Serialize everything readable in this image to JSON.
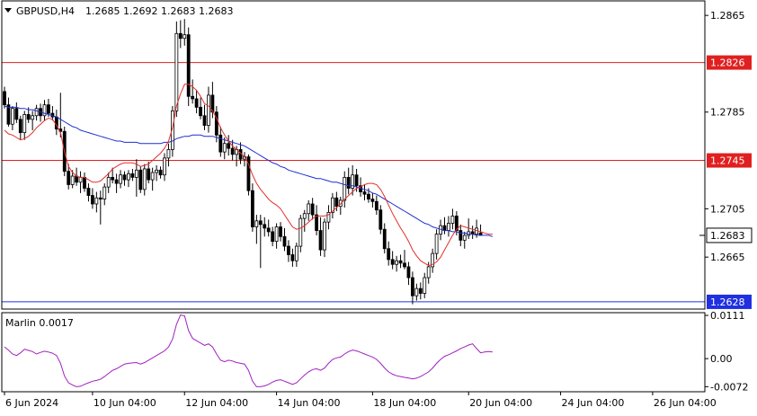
{
  "symbol_header": {
    "symbol": "GBPUSD,H4",
    "ohlc": "1.2685 1.2692 1.2683 1.2683"
  },
  "colors": {
    "background": "#ffffff",
    "candle_bull": "#ffffff",
    "candle_bear": "#000000",
    "candle_outline": "#000000",
    "fast_ma": "#e0302a",
    "slow_ma": "#1f2fd0",
    "level_resistance": "#e02020",
    "level_support": "#2030e0",
    "oscillator": "#a020c0",
    "label_bg": "#ffffff"
  },
  "chart_data": [
    {
      "type": "candlestick",
      "title": "GBPUSD,H4",
      "ylim": [
        1.2622,
        1.2877
      ],
      "y_ticks": [
        "1.2865",
        "1.2785",
        "1.2705",
        "1.2665"
      ],
      "grid": false,
      "x_tick_labels": [
        "6 Jun 2024",
        "10 Jun 04:00",
        "12 Jun 04:00",
        "14 Jun 04:00",
        "18 Jun 04:00",
        "20 Jun 04:00",
        "24 Jun 04:00",
        "26 Jun 04:00"
      ],
      "x_tick_index": [
        0,
        22,
        45,
        68,
        92,
        116,
        139,
        162
      ],
      "last_price_label": "1.2683",
      "last_price": 1.2683,
      "levels": [
        {
          "value": 1.2826,
          "label": "1.2826",
          "color": "red"
        },
        {
          "value": 1.2745,
          "label": "1.2745",
          "color": "red"
        },
        {
          "value": 1.2628,
          "label": "1.2628",
          "color": "blue"
        }
      ],
      "ohlc": [
        [
          1.2802,
          1.2806,
          1.2788,
          1.2791
        ],
        [
          1.2791,
          1.2797,
          1.2773,
          1.2775
        ],
        [
          1.2775,
          1.279,
          1.277,
          1.2788
        ],
        [
          1.2788,
          1.2793,
          1.2776,
          1.2779
        ],
        [
          1.2779,
          1.2782,
          1.2762,
          1.2768
        ],
        [
          1.2768,
          1.2786,
          1.2762,
          1.2783
        ],
        [
          1.2783,
          1.2789,
          1.2776,
          1.2779
        ],
        [
          1.2779,
          1.2786,
          1.277,
          1.2782
        ],
        [
          1.2782,
          1.2791,
          1.2778,
          1.2788
        ],
        [
          1.2788,
          1.2792,
          1.2777,
          1.2782
        ],
        [
          1.2782,
          1.2795,
          1.2778,
          1.2791
        ],
        [
          1.2791,
          1.2796,
          1.2781,
          1.2784
        ],
        [
          1.2784,
          1.279,
          1.2778,
          1.2781
        ],
        [
          1.2781,
          1.2787,
          1.2766,
          1.2771
        ],
        [
          1.2771,
          1.2801,
          1.2764,
          1.2769
        ],
        [
          1.2769,
          1.2773,
          1.2732,
          1.2736
        ],
        [
          1.2736,
          1.2742,
          1.2721,
          1.2725
        ],
        [
          1.2725,
          1.2737,
          1.2722,
          1.2732
        ],
        [
          1.2732,
          1.2739,
          1.2724,
          1.2727
        ],
        [
          1.2727,
          1.2736,
          1.2718,
          1.2731
        ],
        [
          1.2731,
          1.2735,
          1.2719,
          1.2722
        ],
        [
          1.2722,
          1.2726,
          1.2711,
          1.2716
        ],
        [
          1.2716,
          1.2722,
          1.2705,
          1.2709
        ],
        [
          1.2709,
          1.2719,
          1.2702,
          1.2714
        ],
        [
          1.2714,
          1.272,
          1.2692,
          1.2713
        ],
        [
          1.2713,
          1.2726,
          1.2708,
          1.2723
        ],
        [
          1.2723,
          1.2735,
          1.2718,
          1.2731
        ],
        [
          1.2731,
          1.2739,
          1.2726,
          1.2729
        ],
        [
          1.2729,
          1.2734,
          1.2718,
          1.2726
        ],
        [
          1.2726,
          1.2737,
          1.2722,
          1.2733
        ],
        [
          1.2733,
          1.2736,
          1.2724,
          1.2729
        ],
        [
          1.2729,
          1.2737,
          1.2723,
          1.2734
        ],
        [
          1.2734,
          1.2738,
          1.2728,
          1.2731
        ],
        [
          1.2731,
          1.2746,
          1.2715,
          1.2737
        ],
        [
          1.2737,
          1.274,
          1.2718,
          1.2721
        ],
        [
          1.2721,
          1.2742,
          1.2716,
          1.2738
        ],
        [
          1.2738,
          1.2744,
          1.2726,
          1.2729
        ],
        [
          1.2729,
          1.2739,
          1.272,
          1.2735
        ],
        [
          1.2735,
          1.2741,
          1.2728,
          1.2737
        ],
        [
          1.2737,
          1.274,
          1.273,
          1.2733
        ],
        [
          1.2733,
          1.2751,
          1.2728,
          1.2747
        ],
        [
          1.2747,
          1.2759,
          1.274,
          1.2754
        ],
        [
          1.2754,
          1.279,
          1.2748,
          1.2786
        ],
        [
          1.2786,
          1.286,
          1.2781,
          1.285
        ],
        [
          1.285,
          1.2861,
          1.2838,
          1.2846
        ],
        [
          1.2846,
          1.2862,
          1.284,
          1.2849
        ],
        [
          1.2849,
          1.2855,
          1.279,
          1.2798
        ],
        [
          1.2798,
          1.2812,
          1.2792,
          1.2796
        ],
        [
          1.2796,
          1.2803,
          1.2784,
          1.2789
        ],
        [
          1.2789,
          1.2797,
          1.2779,
          1.2782
        ],
        [
          1.2782,
          1.2791,
          1.277,
          1.2774
        ],
        [
          1.2774,
          1.2806,
          1.2768,
          1.2799
        ],
        [
          1.2799,
          1.281,
          1.278,
          1.2785
        ],
        [
          1.2785,
          1.279,
          1.276,
          1.2766
        ],
        [
          1.2766,
          1.2773,
          1.2748,
          1.2752
        ],
        [
          1.2752,
          1.2764,
          1.2746,
          1.2759
        ],
        [
          1.2759,
          1.2766,
          1.2749,
          1.2755
        ],
        [
          1.2755,
          1.2762,
          1.2745,
          1.275
        ],
        [
          1.275,
          1.2757,
          1.274,
          1.2754
        ],
        [
          1.2754,
          1.276,
          1.2742,
          1.2746
        ],
        [
          1.2746,
          1.2752,
          1.274,
          1.2748
        ],
        [
          1.2748,
          1.275,
          1.2716,
          1.272
        ],
        [
          1.272,
          1.2726,
          1.2686,
          1.269
        ],
        [
          1.269,
          1.27,
          1.2676,
          1.2695
        ],
        [
          1.2695,
          1.27,
          1.2656,
          1.2692
        ],
        [
          1.2692,
          1.2698,
          1.2682,
          1.2689
        ],
        [
          1.2689,
          1.2696,
          1.2682,
          1.2686
        ],
        [
          1.2686,
          1.269,
          1.2674,
          1.2678
        ],
        [
          1.2678,
          1.2693,
          1.2672,
          1.269
        ],
        [
          1.269,
          1.2694,
          1.2678,
          1.2682
        ],
        [
          1.2682,
          1.2689,
          1.267,
          1.2674
        ],
        [
          1.2674,
          1.2679,
          1.2661,
          1.2667
        ],
        [
          1.2667,
          1.2672,
          1.2657,
          1.2662
        ],
        [
          1.2662,
          1.2677,
          1.2657,
          1.2674
        ],
        [
          1.2674,
          1.27,
          1.2669,
          1.2697
        ],
        [
          1.2697,
          1.2704,
          1.2686,
          1.2701
        ],
        [
          1.2701,
          1.2712,
          1.2695,
          1.2709
        ],
        [
          1.2709,
          1.2714,
          1.2696,
          1.27
        ],
        [
          1.27,
          1.2708,
          1.2683,
          1.2687
        ],
        [
          1.2687,
          1.2698,
          1.2666,
          1.2671
        ],
        [
          1.2671,
          1.2697,
          1.2665,
          1.2694
        ],
        [
          1.2694,
          1.2708,
          1.2688,
          1.2702
        ],
        [
          1.2702,
          1.2718,
          1.2697,
          1.2714
        ],
        [
          1.2714,
          1.2719,
          1.2703,
          1.2707
        ],
        [
          1.2707,
          1.2715,
          1.27,
          1.2712
        ],
        [
          1.2712,
          1.2736,
          1.2706,
          1.2731
        ],
        [
          1.2731,
          1.2739,
          1.2717,
          1.2722
        ],
        [
          1.2722,
          1.2741,
          1.2716,
          1.2733
        ],
        [
          1.2733,
          1.2738,
          1.2719,
          1.2724
        ],
        [
          1.2724,
          1.2731,
          1.2715,
          1.2719
        ],
        [
          1.2719,
          1.2725,
          1.2712,
          1.2717
        ],
        [
          1.2717,
          1.2722,
          1.271,
          1.2713
        ],
        [
          1.2713,
          1.2718,
          1.2706,
          1.2711
        ],
        [
          1.2711,
          1.2716,
          1.27,
          1.2704
        ],
        [
          1.2704,
          1.2708,
          1.2684,
          1.2688
        ],
        [
          1.2688,
          1.2693,
          1.2668,
          1.2672
        ],
        [
          1.2672,
          1.2678,
          1.2658,
          1.2663
        ],
        [
          1.2663,
          1.267,
          1.2655,
          1.2659
        ],
        [
          1.2659,
          1.2666,
          1.2653,
          1.2662
        ],
        [
          1.2662,
          1.2667,
          1.2656,
          1.266
        ],
        [
          1.266,
          1.2671,
          1.2655,
          1.2657
        ],
        [
          1.2657,
          1.2661,
          1.2642,
          1.2648
        ],
        [
          1.2648,
          1.2653,
          1.2626,
          1.2633
        ],
        [
          1.2633,
          1.2643,
          1.2629,
          1.2639
        ],
        [
          1.2639,
          1.2644,
          1.263,
          1.2635
        ],
        [
          1.2635,
          1.2652,
          1.2631,
          1.2648
        ],
        [
          1.2648,
          1.2661,
          1.2643,
          1.2657
        ],
        [
          1.2657,
          1.2672,
          1.2652,
          1.2668
        ],
        [
          1.2668,
          1.2688,
          1.2663,
          1.2684
        ],
        [
          1.2684,
          1.2696,
          1.2679,
          1.2691
        ],
        [
          1.2691,
          1.2698,
          1.2684,
          1.2687
        ],
        [
          1.2687,
          1.2699,
          1.2682,
          1.2693
        ],
        [
          1.2693,
          1.2705,
          1.2688,
          1.2699
        ],
        [
          1.2699,
          1.2703,
          1.2683,
          1.2687
        ],
        [
          1.2687,
          1.2692,
          1.2674,
          1.2679
        ],
        [
          1.2679,
          1.2686,
          1.2672,
          1.2683
        ],
        [
          1.2683,
          1.2697,
          1.268,
          1.2686
        ],
        [
          1.2686,
          1.2691,
          1.268,
          1.2684
        ],
        [
          1.2684,
          1.2696,
          1.2681,
          1.2689
        ],
        [
          1.2685,
          1.2692,
          1.2683,
          1.2683
        ]
      ],
      "fast_ma": [
        1.277,
        1.2767,
        1.2766,
        1.2764,
        1.2762,
        1.2763,
        1.2765,
        1.2768,
        1.2772,
        1.2775,
        1.2778,
        1.278,
        1.2779,
        1.2774,
        1.2768,
        1.2752,
        1.274,
        1.2735,
        1.2732,
        1.2731,
        1.2731,
        1.2729,
        1.2727,
        1.2727,
        1.2728,
        1.2731,
        1.2734,
        1.2738,
        1.274,
        1.2742,
        1.2743,
        1.2743,
        1.2743,
        1.2742,
        1.274,
        1.2741,
        1.2742,
        1.2745,
        1.2748,
        1.2751,
        1.2755,
        1.2761,
        1.2772,
        1.279,
        1.28,
        1.2808,
        1.2808,
        1.2806,
        1.2803,
        1.2798,
        1.2792,
        1.279,
        1.2786,
        1.278,
        1.2772,
        1.2766,
        1.2761,
        1.2757,
        1.2754,
        1.2751,
        1.2748,
        1.2742,
        1.2733,
        1.2726,
        1.2721,
        1.2717,
        1.2713,
        1.271,
        1.2708,
        1.2705,
        1.27,
        1.2695,
        1.269,
        1.2688,
        1.2689,
        1.2691,
        1.2694,
        1.2697,
        1.2699,
        1.2699,
        1.2699,
        1.27,
        1.2703,
        1.2706,
        1.2709,
        1.2713,
        1.2716,
        1.2719,
        1.2722,
        1.2723,
        1.2725,
        1.2726,
        1.2726,
        1.2725,
        1.2721,
        1.2715,
        1.2708,
        1.2701,
        1.2695,
        1.2689,
        1.2684,
        1.2678,
        1.2671,
        1.2666,
        1.2662,
        1.266,
        1.2658,
        1.2659,
        1.2661,
        1.2665,
        1.2671,
        1.2677,
        1.2683,
        1.2688,
        1.2691,
        1.269,
        1.2689,
        1.2688,
        1.2687,
        1.2686,
        1.2685,
        1.2684,
        1.2684
      ],
      "slow_ma": [
        1.279,
        1.2789,
        1.2789,
        1.2789,
        1.2788,
        1.2788,
        1.2787,
        1.2787,
        1.2786,
        1.2785,
        1.2784,
        1.2783,
        1.2782,
        1.2781,
        1.2779,
        1.2777,
        1.2775,
        1.2773,
        1.2772,
        1.277,
        1.2769,
        1.2768,
        1.2767,
        1.2766,
        1.2765,
        1.2764,
        1.2763,
        1.2762,
        1.2761,
        1.2761,
        1.276,
        1.276,
        1.276,
        1.276,
        1.2759,
        1.2759,
        1.2759,
        1.2759,
        1.2759,
        1.2759,
        1.276,
        1.276,
        1.2761,
        1.2763,
        1.2764,
        1.2765,
        1.2765,
        1.2766,
        1.2766,
        1.2766,
        1.2765,
        1.2765,
        1.2765,
        1.2764,
        1.2763,
        1.2762,
        1.2761,
        1.276,
        1.2759,
        1.2758,
        1.2757,
        1.2755,
        1.2753,
        1.2751,
        1.2749,
        1.2747,
        1.2745,
        1.2743,
        1.2742,
        1.274,
        1.2739,
        1.2737,
        1.2736,
        1.2735,
        1.2734,
        1.2733,
        1.2732,
        1.2731,
        1.273,
        1.273,
        1.2729,
        1.2728,
        1.2727,
        1.2727,
        1.2726,
        1.2725,
        1.2724,
        1.2724,
        1.2723,
        1.2722,
        1.2721,
        1.272,
        1.2718,
        1.2717,
        1.2715,
        1.2713,
        1.2711,
        1.2709,
        1.2707,
        1.2705,
        1.2703,
        1.2701,
        1.2699,
        1.2697,
        1.2695,
        1.2693,
        1.2692,
        1.269,
        1.2689,
        1.2688,
        1.2687,
        1.2687,
        1.2686,
        1.2686,
        1.2685,
        1.2685,
        1.2684,
        1.2684,
        1.2683,
        1.2683,
        1.2683,
        1.2683,
        1.2682
      ]
    },
    {
      "type": "line",
      "title": "Marlin 0.0017",
      "ylim": [
        -0.0085,
        0.0118
      ],
      "y_ticks": [
        "0.0111",
        "0.00",
        "-0.0072"
      ],
      "y_tick_values": [
        0.0111,
        0.0,
        -0.0072
      ],
      "series": [
        {
          "values": [
            0.003,
            0.0022,
            0.0012,
            0.0008,
            0.0015,
            0.0024,
            0.0021,
            0.0018,
            0.0012,
            0.0016,
            0.0019,
            0.0017,
            0.0014,
            0.0008,
            -0.0012,
            -0.0045,
            -0.0062,
            -0.0068,
            -0.0072,
            -0.0071,
            -0.0066,
            -0.0062,
            -0.0058,
            -0.0056,
            -0.0053,
            -0.0046,
            -0.0038,
            -0.003,
            -0.0026,
            -0.002,
            -0.0014,
            -0.0012,
            -0.0011,
            -0.001,
            -0.0014,
            -0.001,
            -0.0004,
            0.0002,
            0.0008,
            0.0014,
            0.002,
            0.003,
            0.005,
            0.0088,
            0.0112,
            0.011,
            0.0072,
            0.0052,
            0.0046,
            0.004,
            0.0034,
            0.0038,
            0.003,
            0.0012,
            -0.0004,
            -0.0008,
            -0.0004,
            -0.0006,
            -0.001,
            -0.0012,
            -0.0014,
            -0.003,
            -0.0058,
            -0.0072,
            -0.0072,
            -0.007,
            -0.0066,
            -0.006,
            -0.0056,
            -0.0054,
            -0.0058,
            -0.0062,
            -0.0066,
            -0.0062,
            -0.0052,
            -0.0042,
            -0.0034,
            -0.0028,
            -0.0026,
            -0.003,
            -0.0024,
            -0.0012,
            -0.0002,
            0.0002,
            0.0004,
            0.0012,
            0.0018,
            0.0022,
            0.002,
            0.0016,
            0.0012,
            0.0008,
            0.0004,
            -0.0002,
            -0.0012,
            -0.0024,
            -0.0034,
            -0.004,
            -0.0044,
            -0.0046,
            -0.0048,
            -0.005,
            -0.0052,
            -0.005,
            -0.0046,
            -0.004,
            -0.0034,
            -0.0024,
            -0.0012,
            -0.0002,
            0.0006,
            0.001,
            0.0015,
            0.002,
            0.0026,
            0.003,
            0.0035,
            0.0038,
            0.0026,
            0.0015,
            0.0017,
            0.0018,
            0.0017
          ]
        }
      ]
    }
  ]
}
